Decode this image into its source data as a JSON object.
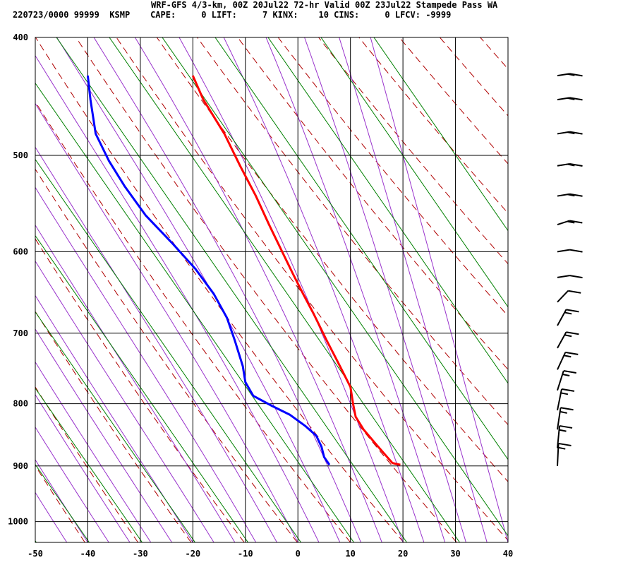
{
  "header": {
    "title": "WRF-GFS 4/3-km, 00Z 20Jul22 72-hr Valid 00Z 23Jul22 Stampede Pass WA",
    "stats": "220723/0000 99999  KSMP    CAPE:     0 LIFT:     7 KINX:    10 CINS:     0 LFCV: -9999"
  },
  "chart_data": {
    "type": "skew-t",
    "x_tick_labels": [
      "-50",
      "-40",
      "-30",
      "-20",
      "-10",
      "0",
      "10",
      "20",
      "30",
      "40"
    ],
    "x_ticks": [
      -50,
      -40,
      -30,
      -20,
      -10,
      0,
      10,
      20,
      30,
      40
    ],
    "y_tick_labels": [
      "400",
      "500",
      "600",
      "700",
      "800",
      "900",
      "1000"
    ],
    "y_ticks": [
      400,
      500,
      600,
      700,
      800,
      900,
      1000
    ],
    "xlim": [
      -50,
      40
    ],
    "ylim": [
      1040,
      400
    ],
    "y_scale": "log",
    "colors": {
      "temperature": "#ff0000",
      "dewpoint": "#0000ff",
      "isotherm": "#000000",
      "dry_adiabat": "#b00000",
      "moist_adiabat": "#9933cc",
      "mixing_ratio": "#008000"
    },
    "series": [
      {
        "key": "temperature",
        "points": [
          [
            -20,
            430
          ],
          [
            -18,
            450
          ],
          [
            -14,
            480
          ],
          [
            -11,
            510
          ],
          [
            -8,
            540
          ],
          [
            -5.5,
            570
          ],
          [
            -3,
            600
          ],
          [
            -1,
            625
          ],
          [
            1,
            650
          ],
          [
            3,
            675
          ],
          [
            5.5,
            710
          ],
          [
            8,
            745
          ],
          [
            10,
            775
          ],
          [
            10.5,
            800
          ],
          [
            11,
            820
          ],
          [
            12.5,
            840
          ],
          [
            15,
            865
          ],
          [
            17,
            885
          ],
          [
            18,
            895
          ],
          [
            19.5,
            898
          ]
        ]
      },
      {
        "key": "dewpoint",
        "points": [
          [
            -40,
            430
          ],
          [
            -39.5,
            450
          ],
          [
            -38.5,
            480
          ],
          [
            -36,
            505
          ],
          [
            -33,
            530
          ],
          [
            -29,
            560
          ],
          [
            -24,
            590
          ],
          [
            -19.5,
            620
          ],
          [
            -16,
            650
          ],
          [
            -13.5,
            680
          ],
          [
            -12,
            710
          ],
          [
            -10.5,
            745
          ],
          [
            -10,
            768
          ],
          [
            -8.5,
            788
          ],
          [
            -5,
            803
          ],
          [
            -1.5,
            817
          ],
          [
            1.5,
            835
          ],
          [
            3.5,
            850
          ],
          [
            4.5,
            868
          ],
          [
            5,
            885
          ],
          [
            6,
            898
          ]
        ]
      }
    ],
    "wind_barbs": [
      {
        "p": 430,
        "speed": 15,
        "dir": 265
      },
      {
        "p": 450,
        "speed": 15,
        "dir": 265
      },
      {
        "p": 480,
        "speed": 15,
        "dir": 265
      },
      {
        "p": 510,
        "speed": 15,
        "dir": 265
      },
      {
        "p": 540,
        "speed": 15,
        "dir": 265
      },
      {
        "p": 570,
        "speed": 15,
        "dir": 260
      },
      {
        "p": 600,
        "speed": 10,
        "dir": 265
      },
      {
        "p": 630,
        "speed": 10,
        "dir": 265
      },
      {
        "p": 660,
        "speed": 10,
        "dir": 240
      },
      {
        "p": 690,
        "speed": 15,
        "dir": 225
      },
      {
        "p": 720,
        "speed": 15,
        "dir": 225
      },
      {
        "p": 750,
        "speed": 15,
        "dir": 220
      },
      {
        "p": 780,
        "speed": 15,
        "dir": 210
      },
      {
        "p": 810,
        "speed": 15,
        "dir": 200
      },
      {
        "p": 840,
        "speed": 15,
        "dir": 195
      },
      {
        "p": 870,
        "speed": 15,
        "dir": 190
      },
      {
        "p": 900,
        "speed": 15,
        "dir": 185
      }
    ]
  }
}
